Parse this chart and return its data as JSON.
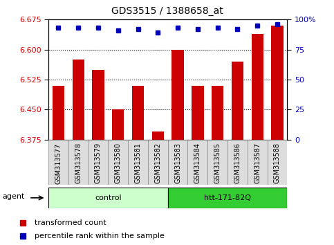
{
  "title": "GDS3515 / 1388658_at",
  "categories": [
    "GSM313577",
    "GSM313578",
    "GSM313579",
    "GSM313580",
    "GSM313581",
    "GSM313582",
    "GSM313583",
    "GSM313584",
    "GSM313585",
    "GSM313586",
    "GSM313587",
    "GSM313588"
  ],
  "bar_values": [
    6.51,
    6.575,
    6.55,
    6.45,
    6.51,
    6.395,
    6.6,
    6.51,
    6.51,
    6.57,
    6.64,
    6.66
  ],
  "percentile_values": [
    93,
    93,
    93,
    91,
    92,
    89,
    93,
    92,
    93,
    92,
    95,
    96
  ],
  "ylim_left": [
    6.375,
    6.675
  ],
  "ylim_right": [
    0,
    100
  ],
  "yticks_left": [
    6.375,
    6.45,
    6.525,
    6.6,
    6.675
  ],
  "yticks_right": [
    0,
    25,
    50,
    75,
    100
  ],
  "ytick_labels_right": [
    "0",
    "25",
    "50",
    "75",
    "100%"
  ],
  "bar_color": "#CC0000",
  "percentile_color": "#0000BB",
  "bar_bottom": 6.375,
  "group1_label": "control",
  "group2_label": "htt-171-82Q",
  "agent_label": "agent",
  "legend_bar_label": "transformed count",
  "legend_pct_label": "percentile rank within the sample",
  "group1_bg": "#CCFFCC",
  "group2_bg": "#33CC33",
  "tick_bg": "#DDDDDD",
  "bar_width": 0.6,
  "title_fontsize": 10,
  "tick_fontsize": 7,
  "axis_fontsize": 8,
  "group_fontsize": 8,
  "legend_fontsize": 8
}
